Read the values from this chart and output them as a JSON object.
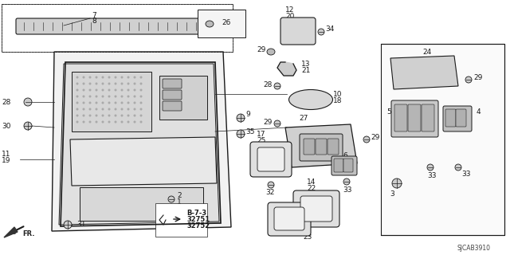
{
  "bg_color": "#ffffff",
  "line_color": "#1a1a1a",
  "diagram_code": "SJCAB3910",
  "fig_w": 6.4,
  "fig_h": 3.2,
  "dpi": 100
}
